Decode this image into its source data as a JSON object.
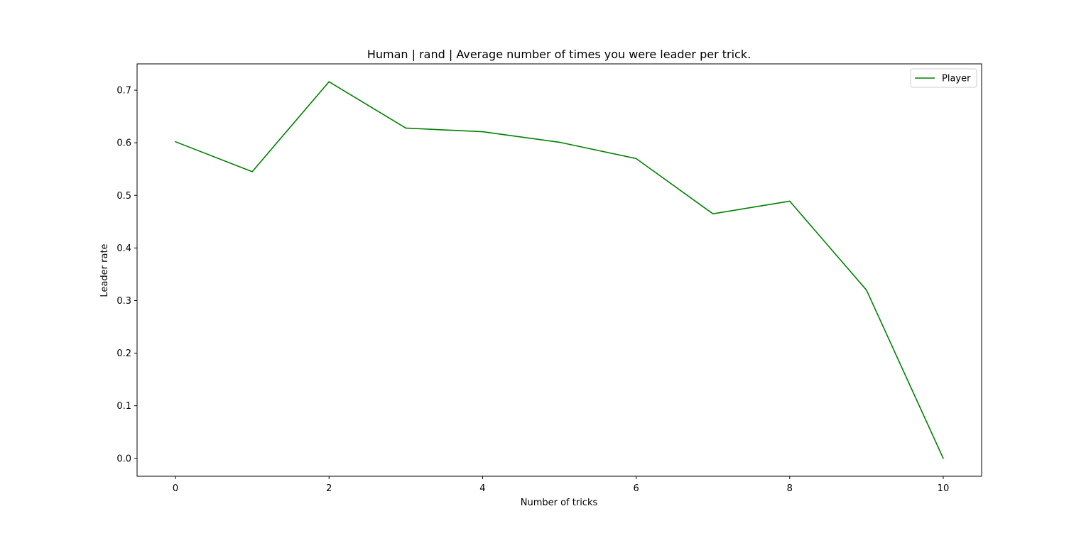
{
  "chart_data": {
    "type": "line",
    "title": "Human | rand | Average number of times you were leader per trick.",
    "xlabel": "Number of tricks",
    "ylabel": "Leader rate",
    "xlim": [
      -0.5,
      10.5
    ],
    "ylim": [
      -0.034,
      0.75
    ],
    "xticks": [
      0,
      2,
      4,
      6,
      8,
      10
    ],
    "xtick_labels": [
      "0",
      "2",
      "4",
      "6",
      "8",
      "10"
    ],
    "yticks": [
      0.0,
      0.1,
      0.2,
      0.3,
      0.4,
      0.5,
      0.6,
      0.7
    ],
    "ytick_labels": [
      "0.0",
      "0.1",
      "0.2",
      "0.3",
      "0.4",
      "0.5",
      "0.6",
      "0.7"
    ],
    "grid": false,
    "legend_position": "top-right",
    "series": [
      {
        "name": "Player",
        "color": "#008000",
        "x": [
          0,
          1,
          2,
          3,
          4,
          5,
          6,
          7,
          8,
          9,
          10
        ],
        "values": [
          0.602,
          0.545,
          0.716,
          0.628,
          0.621,
          0.601,
          0.57,
          0.465,
          0.489,
          0.32,
          0.0
        ]
      }
    ]
  }
}
